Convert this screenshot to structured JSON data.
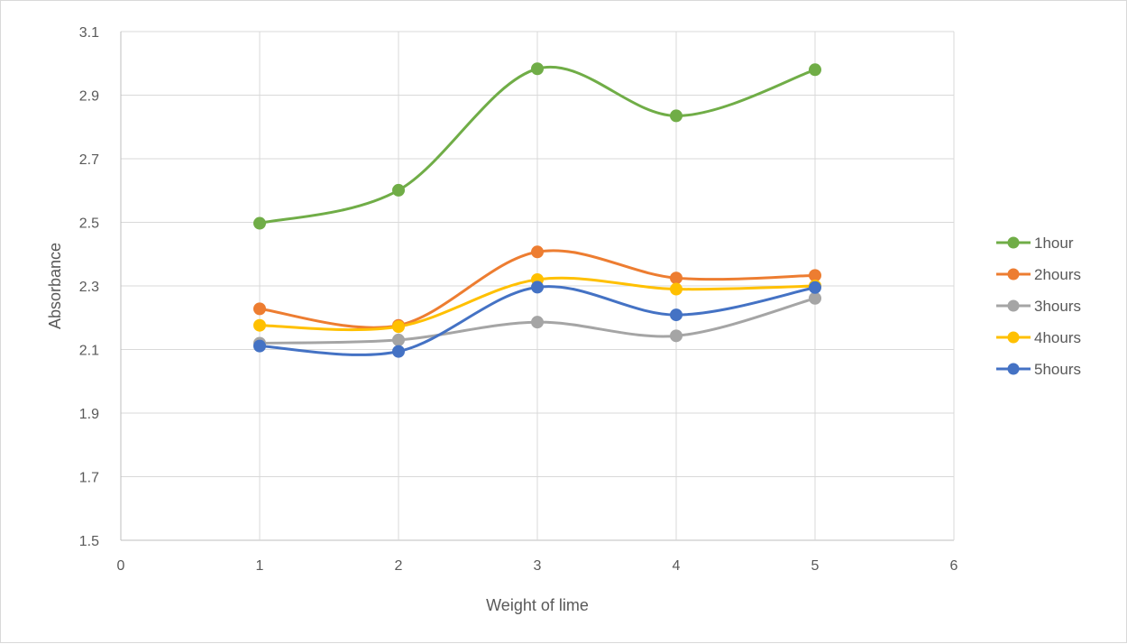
{
  "chart_data": {
    "type": "scatter",
    "title": "",
    "xlabel": "Weight of lime",
    "ylabel": "Absorbance",
    "xlim": [
      0,
      6
    ],
    "ylim": [
      1.5,
      3.1
    ],
    "x_ticks": [
      "0",
      "1",
      "2",
      "3",
      "4",
      "5",
      "6"
    ],
    "y_ticks": [
      "1.5",
      "1.7",
      "1.9",
      "2.1",
      "2.3",
      "2.5",
      "2.7",
      "2.9",
      "3.1"
    ],
    "grid": true,
    "smooth_lines": true,
    "legend_position": "right",
    "x": [
      1,
      2,
      3,
      4,
      5
    ],
    "series": [
      {
        "name": "1hour",
        "color": "#70ad47",
        "values": [
          2.497,
          2.601,
          2.983,
          2.835,
          2.98
        ]
      },
      {
        "name": "2hours",
        "color": "#ed7d31",
        "values": [
          2.228,
          2.176,
          2.407,
          2.325,
          2.333
        ]
      },
      {
        "name": "3hours",
        "color": "#a5a5a5",
        "values": [
          2.12,
          2.13,
          2.186,
          2.143,
          2.261
        ]
      },
      {
        "name": "4hours",
        "color": "#ffc000",
        "values": [
          2.176,
          2.172,
          2.32,
          2.29,
          2.3
        ]
      },
      {
        "name": "5hours",
        "color": "#4472c4",
        "values": [
          2.111,
          2.094,
          2.296,
          2.209,
          2.295
        ]
      }
    ]
  }
}
